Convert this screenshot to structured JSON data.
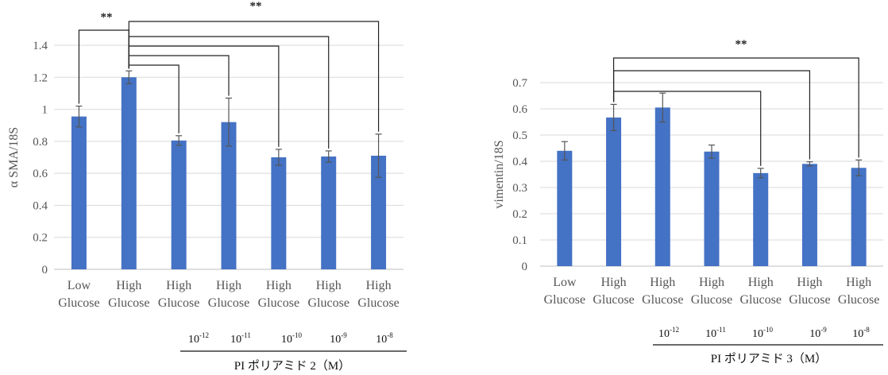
{
  "chart_data": [
    {
      "type": "bar",
      "ylabel": "α SMA/18S",
      "ylim": [
        0,
        1.4
      ],
      "yticks": [
        "0",
        "0.2",
        "0.4",
        "0.6",
        "0.8",
        "1",
        "1.2",
        "1.4"
      ],
      "categories": [
        [
          "Low",
          "Glucose"
        ],
        [
          "High",
          "Glucose"
        ],
        [
          "High",
          "Glucose"
        ],
        [
          "High",
          "Glucose"
        ],
        [
          "High",
          "Glucose"
        ],
        [
          "High",
          "Glucose"
        ],
        [
          "High",
          "Glucose"
        ]
      ],
      "values": [
        0.955,
        1.2,
        0.805,
        0.92,
        0.7,
        0.705,
        0.71
      ],
      "errors": [
        0.065,
        0.04,
        0.03,
        0.15,
        0.05,
        0.035,
        0.135
      ],
      "significance": [
        {
          "from": 0,
          "to": 1,
          "label": "**"
        },
        {
          "from": 1,
          "to": 6,
          "label": "**"
        },
        {
          "from": 1,
          "to": 5,
          "label": ""
        },
        {
          "from": 1,
          "to": 4,
          "label": ""
        },
        {
          "from": 1,
          "to": 3,
          "label": ""
        },
        {
          "from": 1,
          "to": 2,
          "label": ""
        }
      ],
      "concentrations": [
        {
          "base": "10",
          "exp": "-12"
        },
        {
          "base": "10",
          "exp": "-11"
        },
        {
          "base": "10",
          "exp": "-10"
        },
        {
          "base": "10",
          "exp": "-9"
        },
        {
          "base": "10",
          "exp": "-8"
        }
      ],
      "agent_label": "PI ポリアミド 2（M）"
    },
    {
      "type": "bar",
      "ylabel": "vimentin/18S",
      "ylim": [
        0,
        0.7
      ],
      "yticks": [
        "0",
        "0.1",
        "0.2",
        "0.3",
        "0.4",
        "0.5",
        "0.6",
        "0.7"
      ],
      "categories": [
        [
          "Low",
          "Glucose"
        ],
        [
          "High",
          "Glucose"
        ],
        [
          "High",
          "Glucose"
        ],
        [
          "High",
          "Glucose"
        ],
        [
          "High",
          "Glucose"
        ],
        [
          "High",
          "Glucose"
        ],
        [
          "High",
          "Glucose"
        ]
      ],
      "values": [
        0.44,
        0.567,
        0.605,
        0.437,
        0.355,
        0.39,
        0.375
      ],
      "errors": [
        0.035,
        0.05,
        0.055,
        0.025,
        0.018,
        0.008,
        0.03
      ],
      "significance": [
        {
          "from": 1,
          "to": 6,
          "label": "**"
        },
        {
          "from": 1,
          "to": 5,
          "label": ""
        },
        {
          "from": 1,
          "to": 4,
          "label": ""
        }
      ],
      "concentrations": [
        {
          "base": "10",
          "exp": "-12"
        },
        {
          "base": "10",
          "exp": "-11"
        },
        {
          "base": "10",
          "exp": "-10"
        },
        {
          "base": "10",
          "exp": "-9"
        },
        {
          "base": "10",
          "exp": "-8"
        }
      ],
      "agent_label": "PI ポリアミド 3（M）"
    }
  ]
}
